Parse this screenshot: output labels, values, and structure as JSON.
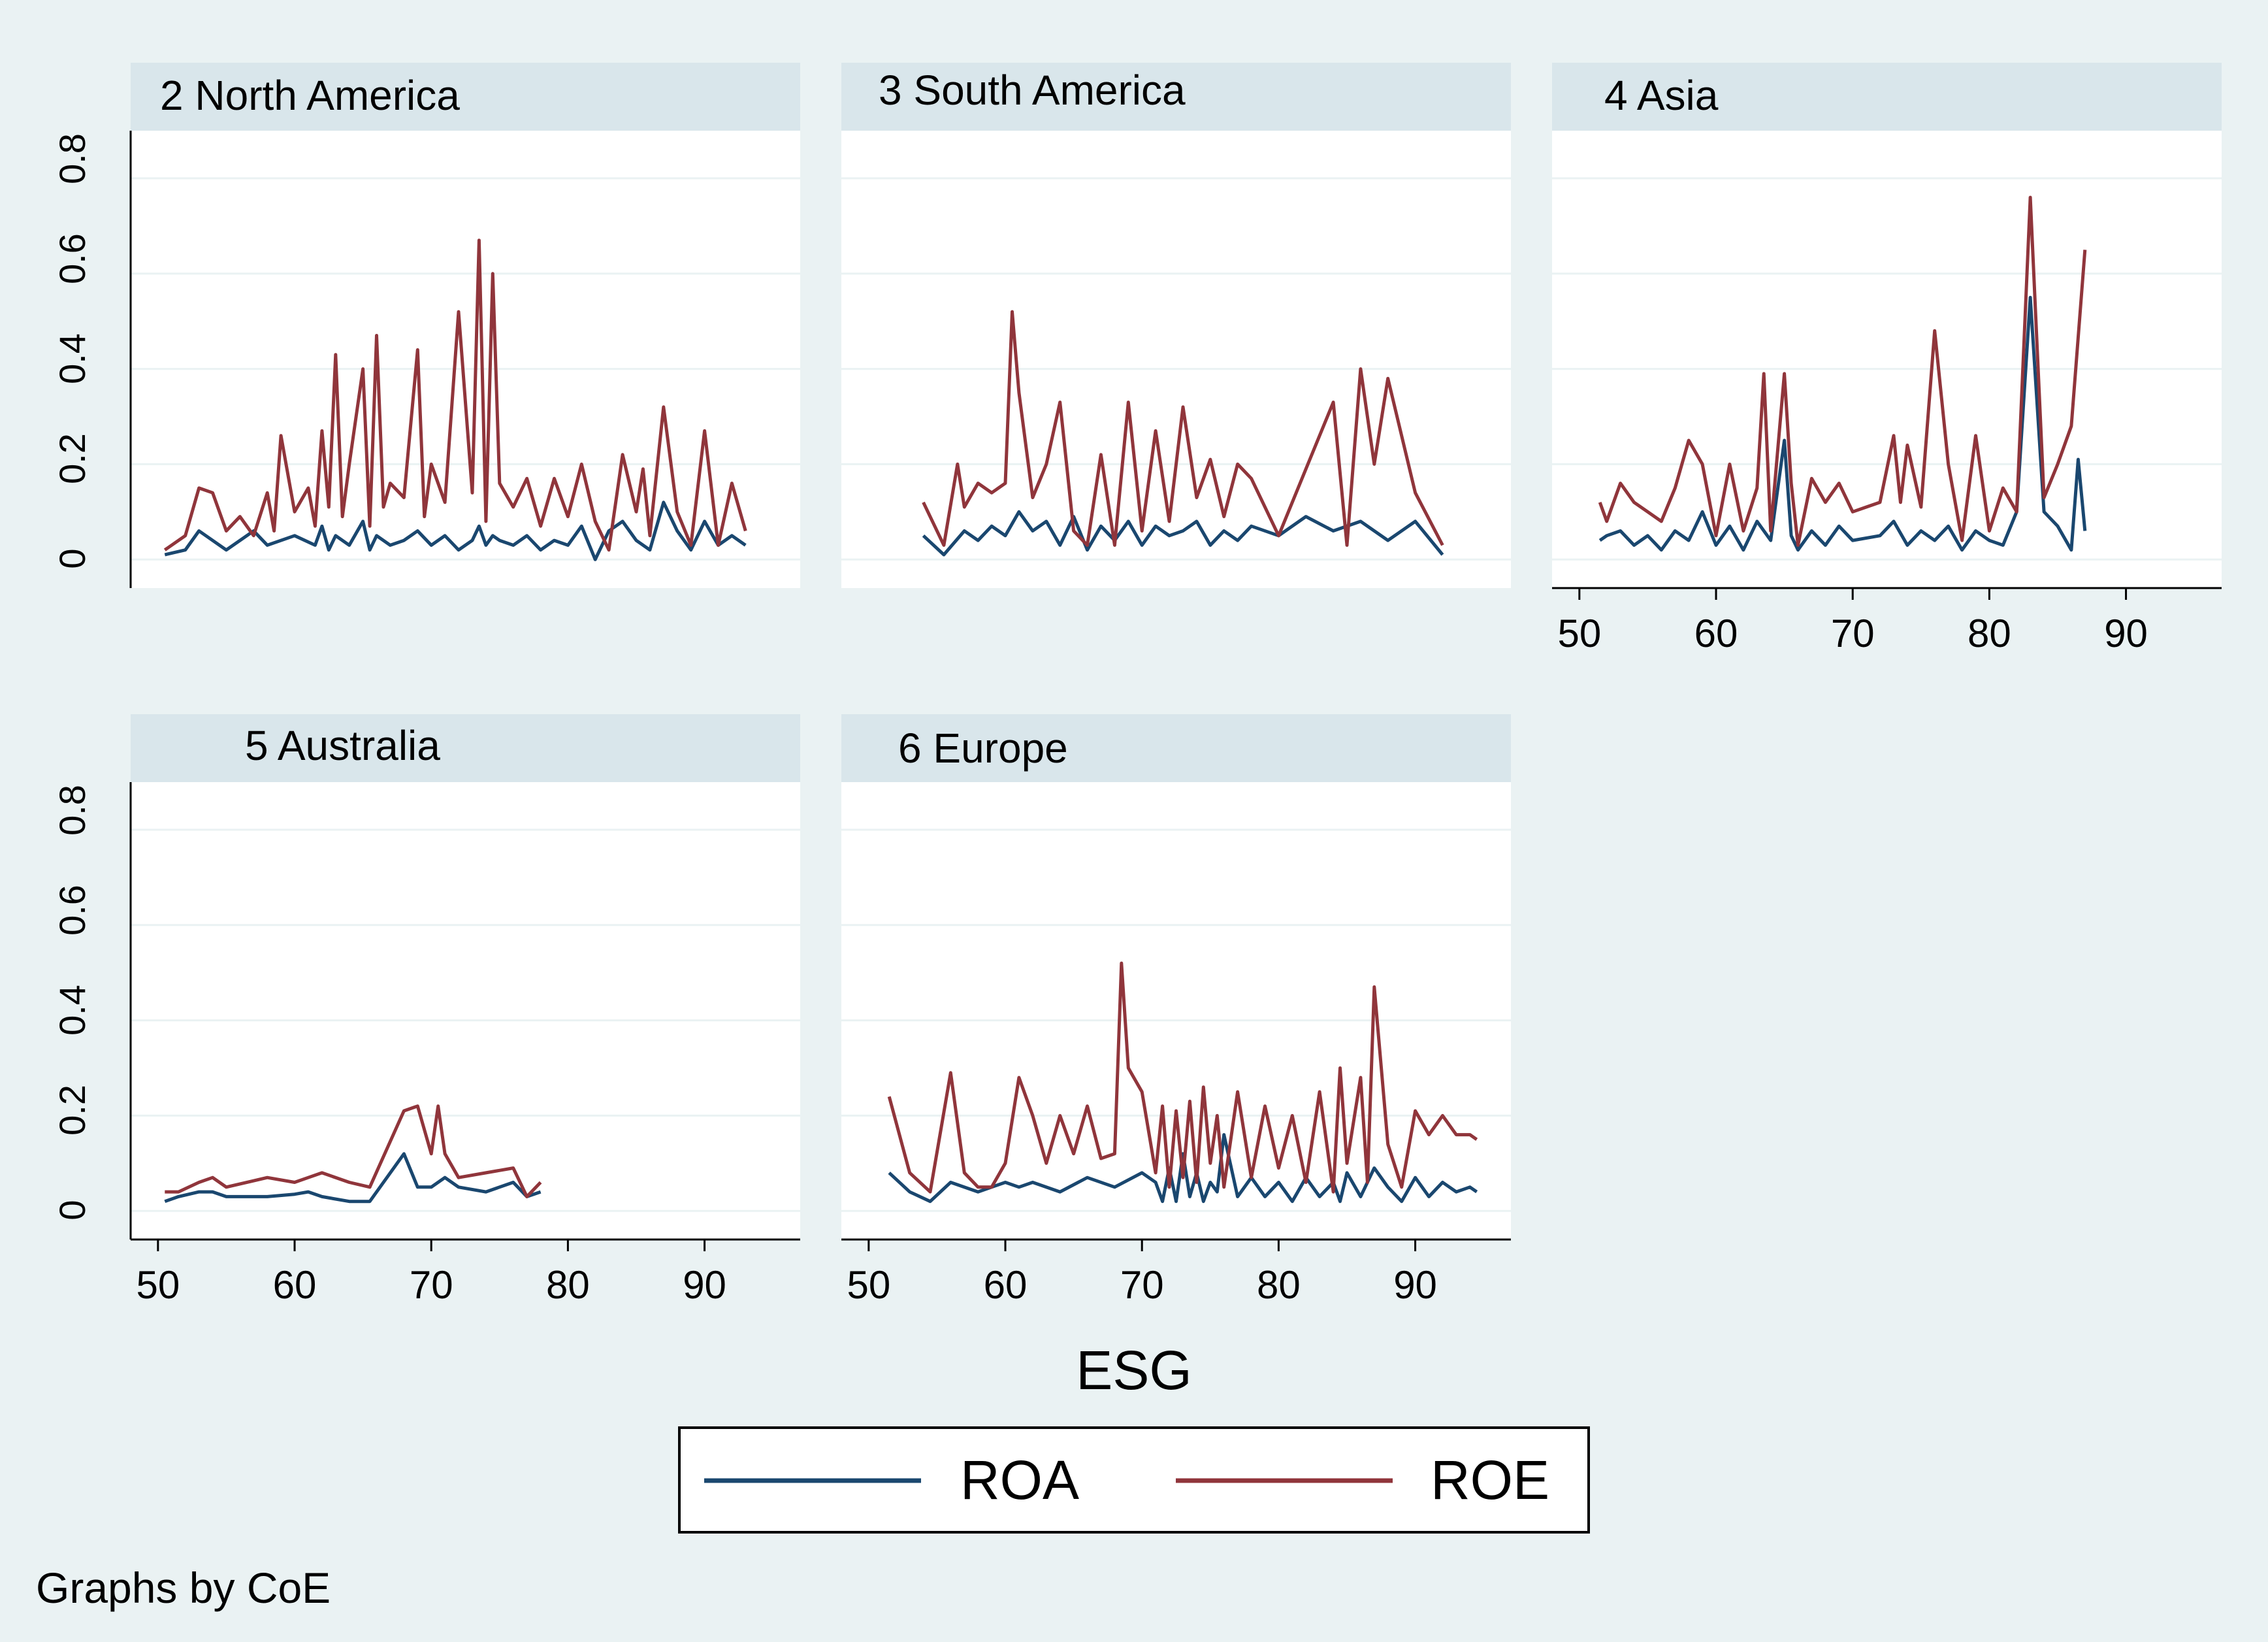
{
  "chart_data": {
    "type": "line",
    "xlabel": "ESG",
    "x_ticks": [
      50,
      60,
      70,
      80,
      90
    ],
    "xlim": [
      48,
      97
    ],
    "y_ticks": [
      "0",
      "0.2",
      "0.4",
      "0.6",
      "0.8"
    ],
    "y_tick_values": [
      0,
      0.2,
      0.4,
      0.6,
      0.8
    ],
    "ylim": [
      -0.06,
      0.9
    ],
    "note": "Graphs by CoE",
    "grid": true,
    "legend": {
      "placement": "bottom",
      "entries": [
        {
          "name": "ROA",
          "color": "#1a476f"
        },
        {
          "name": "ROE",
          "color": "#90353b"
        }
      ]
    },
    "panels": [
      {
        "title": "2 North America",
        "series": {
          "ROA": {
            "x": [
              50.5,
              52,
              53,
              55,
              57,
              58,
              60,
              61.5,
              62,
              62.5,
              63,
              64,
              65,
              65.5,
              66,
              67,
              68,
              69,
              70,
              71,
              72,
              73,
              73.5,
              74,
              74.5,
              75,
              76,
              77,
              78,
              79,
              80,
              81,
              82,
              83,
              84,
              85,
              86,
              87,
              88,
              89,
              90,
              91,
              92,
              93
            ],
            "y": [
              0.01,
              0.02,
              0.06,
              0.02,
              0.06,
              0.03,
              0.05,
              0.03,
              0.07,
              0.02,
              0.05,
              0.03,
              0.08,
              0.02,
              0.05,
              0.03,
              0.04,
              0.06,
              0.03,
              0.05,
              0.02,
              0.04,
              0.07,
              0.03,
              0.05,
              0.04,
              0.03,
              0.05,
              0.02,
              0.04,
              0.03,
              0.07,
              0.0,
              0.06,
              0.08,
              0.04,
              0.02,
              0.12,
              0.06,
              0.02,
              0.08,
              0.03,
              0.05,
              0.03
            ]
          },
          "ROE": {
            "x": [
              50.5,
              52,
              53,
              54,
              55,
              56,
              57,
              58,
              58.5,
              59,
              60,
              61,
              61.5,
              62,
              62.5,
              63,
              63.5,
              64,
              65,
              65.5,
              66,
              66.5,
              67,
              68,
              69,
              69.5,
              70,
              71,
              72,
              73,
              73.5,
              74,
              74.5,
              75,
              76,
              77,
              78,
              79,
              80,
              81,
              82,
              83,
              84,
              85,
              85.5,
              86,
              87,
              88,
              89,
              90,
              91,
              92,
              93
            ],
            "y": [
              0.02,
              0.05,
              0.15,
              0.14,
              0.06,
              0.09,
              0.05,
              0.14,
              0.06,
              0.26,
              0.1,
              0.15,
              0.07,
              0.27,
              0.11,
              0.43,
              0.09,
              0.2,
              0.4,
              0.07,
              0.47,
              0.11,
              0.16,
              0.13,
              0.44,
              0.09,
              0.2,
              0.12,
              0.52,
              0.14,
              0.67,
              0.08,
              0.6,
              0.16,
              0.11,
              0.17,
              0.07,
              0.17,
              0.09,
              0.2,
              0.08,
              0.02,
              0.22,
              0.1,
              0.19,
              0.05,
              0.32,
              0.1,
              0.03,
              0.27,
              0.03,
              0.16,
              0.06
            ]
          }
        }
      },
      {
        "title": "3 South America",
        "series": {
          "ROA": {
            "x": [
              54,
              55.5,
              57,
              58,
              59,
              60,
              61,
              62,
              63,
              64,
              65,
              66,
              67,
              68,
              69,
              70,
              71,
              72,
              73,
              74,
              75,
              76,
              77,
              78,
              80,
              82,
              84,
              86,
              88,
              90,
              92
            ],
            "y": [
              0.05,
              0.01,
              0.06,
              0.04,
              0.07,
              0.05,
              0.1,
              0.06,
              0.08,
              0.03,
              0.09,
              0.02,
              0.07,
              0.04,
              0.08,
              0.03,
              0.07,
              0.05,
              0.06,
              0.08,
              0.03,
              0.06,
              0.04,
              0.07,
              0.05,
              0.09,
              0.06,
              0.08,
              0.04,
              0.08,
              0.01
            ]
          },
          "ROE": {
            "x": [
              54,
              55.5,
              56.5,
              57,
              58,
              59,
              60,
              60.5,
              61,
              62,
              63,
              64,
              65,
              66,
              67,
              68,
              69,
              70,
              71,
              72,
              73,
              74,
              75,
              76,
              77,
              78,
              80,
              82,
              84,
              85,
              86,
              87,
              88,
              90,
              92
            ],
            "y": [
              0.12,
              0.03,
              0.2,
              0.11,
              0.16,
              0.14,
              0.16,
              0.52,
              0.35,
              0.13,
              0.2,
              0.33,
              0.06,
              0.03,
              0.22,
              0.03,
              0.33,
              0.06,
              0.27,
              0.08,
              0.32,
              0.13,
              0.21,
              0.09,
              0.2,
              0.17,
              0.05,
              0.19,
              0.33,
              0.03,
              0.4,
              0.2,
              0.38,
              0.14,
              0.03
            ]
          }
        }
      },
      {
        "title": "4 Asia",
        "series": {
          "ROA": {
            "x": [
              51.5,
              52,
              53,
              54,
              55,
              56,
              57,
              58,
              59,
              60,
              61,
              62,
              63,
              64,
              65,
              65.5,
              66,
              67,
              68,
              69,
              70,
              72,
              73,
              74,
              75,
              76,
              77,
              78,
              79,
              80,
              81,
              82,
              83,
              84,
              85,
              86,
              86.5,
              87
            ],
            "y": [
              0.04,
              0.05,
              0.06,
              0.03,
              0.05,
              0.02,
              0.06,
              0.04,
              0.1,
              0.03,
              0.07,
              0.02,
              0.08,
              0.04,
              0.25,
              0.05,
              0.02,
              0.06,
              0.03,
              0.07,
              0.04,
              0.05,
              0.08,
              0.03,
              0.06,
              0.04,
              0.07,
              0.02,
              0.06,
              0.04,
              0.03,
              0.1,
              0.55,
              0.1,
              0.07,
              0.02,
              0.21,
              0.06
            ]
          },
          "ROE": {
            "x": [
              51.5,
              52,
              53,
              54,
              55,
              56,
              57,
              58,
              59,
              60,
              61,
              62,
              63,
              63.5,
              64,
              65,
              65.5,
              66,
              67,
              68,
              69,
              70,
              71,
              72,
              73,
              73.5,
              74,
              75,
              76,
              77,
              78,
              79,
              80,
              81,
              82,
              83,
              84,
              85,
              86,
              87
            ],
            "y": [
              0.12,
              0.08,
              0.16,
              0.12,
              0.1,
              0.08,
              0.15,
              0.25,
              0.2,
              0.05,
              0.2,
              0.06,
              0.15,
              0.39,
              0.06,
              0.39,
              0.16,
              0.03,
              0.17,
              0.12,
              0.16,
              0.1,
              0.11,
              0.12,
              0.26,
              0.12,
              0.24,
              0.11,
              0.48,
              0.2,
              0.04,
              0.26,
              0.06,
              0.15,
              0.1,
              0.76,
              0.13,
              0.2,
              0.28,
              0.65
            ]
          }
        }
      },
      {
        "title": "5 Australia",
        "series": {
          "ROA": {
            "x": [
              50.5,
              51.5,
              53,
              54,
              55,
              58,
              60,
              61,
              62,
              64,
              65.5,
              68,
              69,
              70,
              71,
              72,
              74,
              76,
              77,
              78
            ],
            "y": [
              0.02,
              0.03,
              0.04,
              0.04,
              0.03,
              0.03,
              0.035,
              0.04,
              0.03,
              0.02,
              0.02,
              0.12,
              0.05,
              0.05,
              0.07,
              0.05,
              0.04,
              0.06,
              0.03,
              0.04
            ]
          },
          "ROE": {
            "x": [
              50.5,
              51.5,
              53,
              54,
              55,
              58,
              60,
              61,
              62,
              64,
              65.5,
              68,
              69,
              70,
              70.5,
              71,
              72,
              74,
              76,
              77,
              78
            ],
            "y": [
              0.04,
              0.04,
              0.06,
              0.07,
              0.05,
              0.07,
              0.06,
              0.07,
              0.08,
              0.06,
              0.05,
              0.21,
              0.22,
              0.12,
              0.22,
              0.12,
              0.07,
              0.08,
              0.09,
              0.03,
              0.06
            ]
          }
        }
      },
      {
        "title": "6 Europe",
        "series": {
          "ROA": {
            "x": [
              51.5,
              53,
              54.5,
              56,
              58,
              60,
              61,
              62,
              64,
              66,
              68,
              70,
              71,
              71.5,
              72,
              72.5,
              73,
              73.5,
              74,
              74.5,
              75,
              75.5,
              76,
              77,
              78,
              79,
              80,
              81,
              82,
              83,
              84,
              84.5,
              85,
              86,
              87,
              88,
              89,
              90,
              91,
              92,
              93,
              94,
              94.5
            ],
            "y": [
              0.08,
              0.04,
              0.02,
              0.06,
              0.04,
              0.06,
              0.05,
              0.06,
              0.04,
              0.07,
              0.05,
              0.08,
              0.06,
              0.02,
              0.09,
              0.02,
              0.12,
              0.03,
              0.08,
              0.02,
              0.06,
              0.04,
              0.16,
              0.03,
              0.07,
              0.03,
              0.06,
              0.02,
              0.07,
              0.03,
              0.06,
              0.02,
              0.08,
              0.03,
              0.09,
              0.05,
              0.02,
              0.07,
              0.03,
              0.06,
              0.04,
              0.05,
              0.04
            ]
          },
          "ROE": {
            "x": [
              51.5,
              53,
              54.5,
              56,
              57,
              58,
              59,
              60,
              61,
              62,
              63,
              64,
              65,
              66,
              67,
              68,
              68.5,
              69,
              70,
              71,
              71.5,
              72,
              72.5,
              73,
              73.5,
              74,
              74.5,
              75,
              75.5,
              76,
              77,
              78,
              79,
              80,
              81,
              82,
              83,
              84,
              84.5,
              85,
              86,
              86.5,
              87,
              88,
              89,
              90,
              91,
              92,
              93,
              94,
              94.5
            ],
            "y": [
              0.24,
              0.08,
              0.04,
              0.29,
              0.08,
              0.05,
              0.05,
              0.1,
              0.28,
              0.2,
              0.1,
              0.2,
              0.12,
              0.22,
              0.11,
              0.12,
              0.52,
              0.3,
              0.25,
              0.08,
              0.22,
              0.05,
              0.21,
              0.07,
              0.23,
              0.06,
              0.26,
              0.1,
              0.2,
              0.05,
              0.25,
              0.07,
              0.22,
              0.09,
              0.2,
              0.06,
              0.25,
              0.04,
              0.3,
              0.1,
              0.28,
              0.06,
              0.47,
              0.14,
              0.05,
              0.21,
              0.16,
              0.2,
              0.16,
              0.16,
              0.15
            ]
          }
        }
      }
    ]
  }
}
